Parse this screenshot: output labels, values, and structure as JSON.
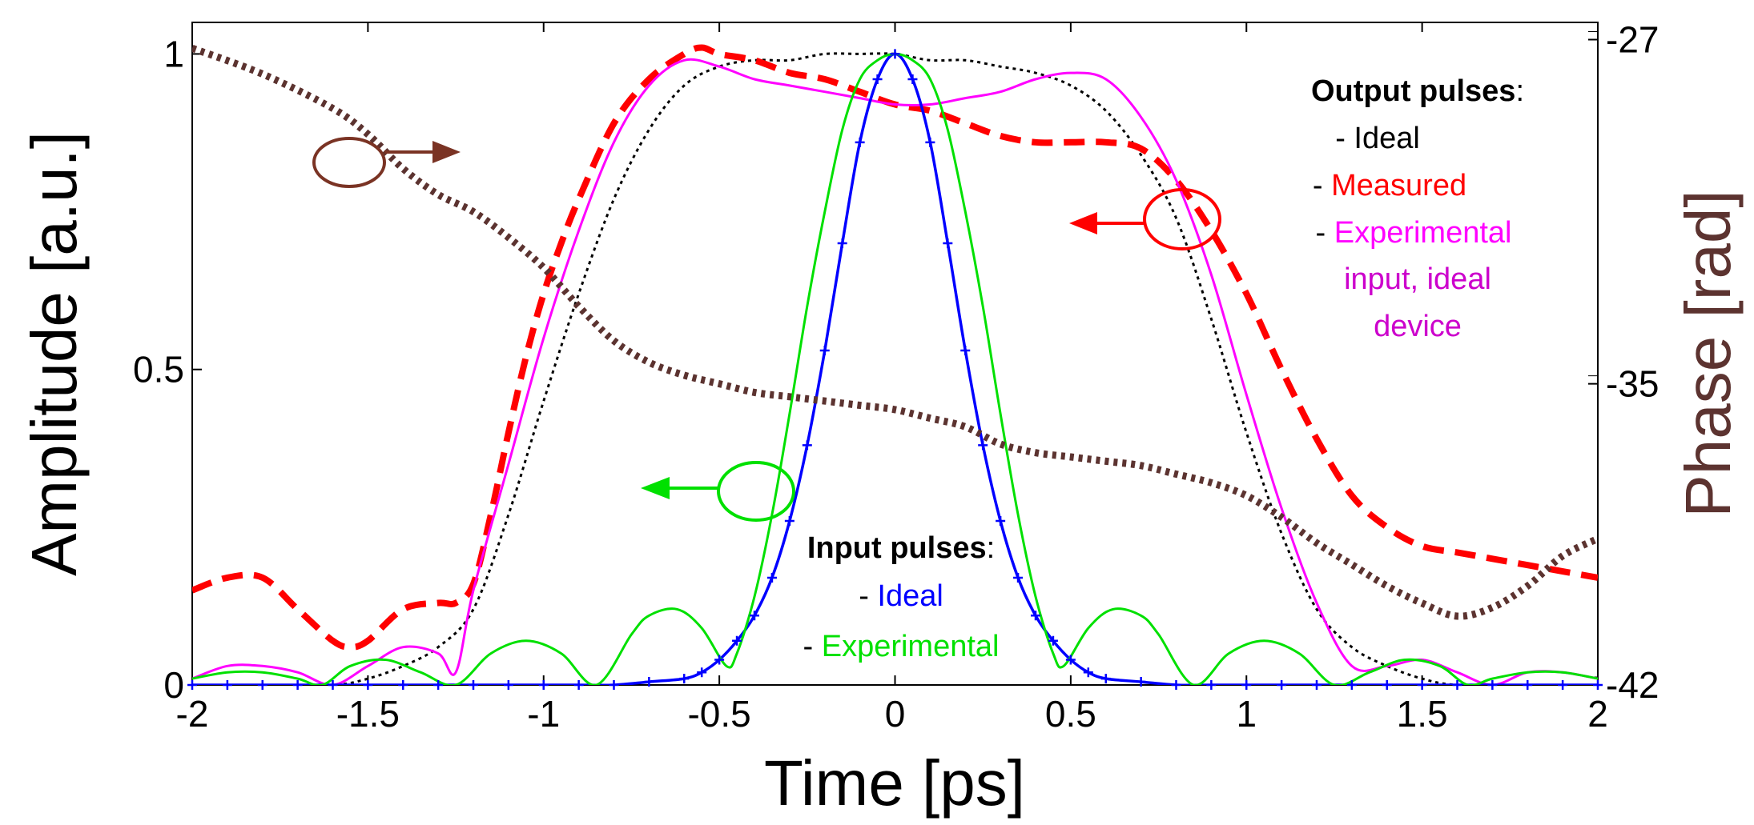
{
  "chart_data": {
    "type": "line",
    "xlabel": "Time [ps]",
    "ylabel": "Amplitude [a.u.]",
    "y2label": "Phase [rad]",
    "xlim": [
      -2,
      2
    ],
    "ylim": [
      0,
      1.05
    ],
    "y2lim": [
      -42,
      -26.6
    ],
    "x_ticks": [
      "-2",
      "-1.5",
      "-1",
      "-0.5",
      "0",
      "0.5",
      "1",
      "1.5",
      "2"
    ],
    "y_ticks": [
      "0",
      "0.5",
      "1"
    ],
    "y2_ticks": [
      "-27",
      "-35",
      "-42"
    ],
    "colors": {
      "output_ideal": "#000000",
      "output_measured": "#ff0000",
      "output_experimental": "#ff00ff",
      "input_ideal": "#0000ff",
      "input_experimental": "#00e000",
      "phase": "#5c3330"
    },
    "legend_output": {
      "heading": "Output pulses",
      "colon": ":",
      "dash": "- ",
      "ideal": "Ideal",
      "measured": "Measured",
      "experimental_1": "Experimental",
      "experimental_2": "input, ideal",
      "experimental_3": "device"
    },
    "legend_input": {
      "heading": "Input pulses",
      "colon": ":",
      "dash": "- ",
      "ideal": "Ideal",
      "experimental": "Experimental"
    },
    "series": [
      {
        "name": "Output ideal",
        "axis": "left",
        "style": "dotted-thin",
        "color_key": "output_ideal",
        "x": [
          -2,
          -1.8,
          -1.6,
          -1.5,
          -1.4,
          -1.3,
          -1.2,
          -1.1,
          -1,
          -0.9,
          -0.8,
          -0.7,
          -0.6,
          -0.5,
          -0.4,
          -0.3,
          -0.2,
          -0.1,
          0,
          0.1,
          0.2,
          0.3,
          0.4,
          0.5,
          0.6,
          0.7,
          0.8,
          0.9,
          1,
          1.1,
          1.2,
          1.3,
          1.4,
          1.5,
          1.6,
          1.8,
          2
        ],
        "y": [
          0,
          0,
          0,
          0.01,
          0.03,
          0.06,
          0.12,
          0.27,
          0.45,
          0.62,
          0.77,
          0.88,
          0.95,
          0.98,
          0.99,
          0.99,
          1,
          1,
          1,
          0.99,
          0.99,
          0.98,
          0.97,
          0.95,
          0.91,
          0.84,
          0.74,
          0.58,
          0.4,
          0.24,
          0.12,
          0.06,
          0.03,
          0.01,
          0,
          0,
          0
        ]
      },
      {
        "name": "Output measured",
        "axis": "left",
        "style": "dashed-thick",
        "color_key": "output_measured",
        "x": [
          -2,
          -1.9,
          -1.8,
          -1.7,
          -1.6,
          -1.55,
          -1.5,
          -1.4,
          -1.3,
          -1.25,
          -1.2,
          -1.15,
          -1.1,
          -1.05,
          -1,
          -0.95,
          -0.9,
          -0.8,
          -0.7,
          -0.6,
          -0.55,
          -0.5,
          -0.4,
          -0.3,
          -0.2,
          -0.1,
          0,
          0.1,
          0.2,
          0.3,
          0.4,
          0.5,
          0.6,
          0.7,
          0.8,
          0.9,
          1,
          1.1,
          1.2,
          1.3,
          1.4,
          1.5,
          1.6,
          1.7,
          1.8,
          1.9,
          2
        ],
        "y": [
          0.15,
          0.17,
          0.17,
          0.12,
          0.07,
          0.06,
          0.07,
          0.12,
          0.13,
          0.13,
          0.16,
          0.27,
          0.4,
          0.52,
          0.62,
          0.7,
          0.77,
          0.89,
          0.96,
          1,
          1.01,
          1,
          0.99,
          0.97,
          0.96,
          0.94,
          0.92,
          0.91,
          0.89,
          0.87,
          0.86,
          0.86,
          0.86,
          0.85,
          0.8,
          0.72,
          0.62,
          0.5,
          0.39,
          0.3,
          0.25,
          0.22,
          0.21,
          0.2,
          0.19,
          0.18,
          0.17
        ]
      },
      {
        "name": "Output experimental",
        "axis": "left",
        "style": "solid-thin",
        "color_key": "output_experimental",
        "x": [
          -2,
          -1.9,
          -1.8,
          -1.7,
          -1.6,
          -1.5,
          -1.4,
          -1.3,
          -1.25,
          -1.2,
          -1.1,
          -1,
          -0.9,
          -0.8,
          -0.7,
          -0.6,
          -0.5,
          -0.4,
          -0.3,
          -0.2,
          -0.1,
          0,
          0.1,
          0.2,
          0.3,
          0.4,
          0.5,
          0.6,
          0.7,
          0.8,
          0.9,
          1,
          1.1,
          1.2,
          1.3,
          1.4,
          1.5,
          1.6,
          1.7,
          1.8,
          1.9,
          2
        ],
        "y": [
          0.01,
          0.03,
          0.03,
          0.02,
          0.0,
          0.03,
          0.06,
          0.05,
          0.02,
          0.15,
          0.35,
          0.55,
          0.72,
          0.86,
          0.95,
          0.99,
          0.98,
          0.96,
          0.95,
          0.94,
          0.93,
          0.92,
          0.92,
          0.93,
          0.94,
          0.96,
          0.97,
          0.96,
          0.9,
          0.8,
          0.65,
          0.46,
          0.28,
          0.13,
          0.03,
          0.03,
          0.04,
          0.02,
          0.0,
          0.02,
          0.02,
          0.01
        ]
      },
      {
        "name": "Input ideal",
        "axis": "left",
        "style": "solid-markers",
        "color_key": "input_ideal",
        "x": [
          -2,
          -1.9,
          -1.8,
          -1.7,
          -1.6,
          -1.5,
          -1.4,
          -1.3,
          -1.2,
          -1.1,
          -1,
          -0.9,
          -0.8,
          -0.7,
          -0.6,
          -0.55,
          -0.5,
          -0.45,
          -0.4,
          -0.35,
          -0.3,
          -0.25,
          -0.2,
          -0.15,
          -0.1,
          -0.05,
          0,
          0.05,
          0.1,
          0.15,
          0.2,
          0.25,
          0.3,
          0.35,
          0.4,
          0.45,
          0.5,
          0.55,
          0.6,
          0.7,
          0.8,
          0.9,
          1,
          1.1,
          1.2,
          1.3,
          1.4,
          1.5,
          1.6,
          1.7,
          1.8,
          1.9,
          2
        ],
        "y": [
          0,
          0,
          0,
          0,
          0,
          0,
          0,
          0,
          0,
          0,
          0,
          0,
          0,
          0.005,
          0.01,
          0.02,
          0.04,
          0.07,
          0.11,
          0.17,
          0.26,
          0.38,
          0.53,
          0.7,
          0.86,
          0.96,
          1,
          0.96,
          0.86,
          0.7,
          0.53,
          0.38,
          0.26,
          0.17,
          0.11,
          0.07,
          0.04,
          0.02,
          0.01,
          0.005,
          0,
          0,
          0,
          0,
          0,
          0,
          0,
          0,
          0,
          0,
          0,
          0,
          0
        ]
      },
      {
        "name": "Input experimental",
        "axis": "left",
        "style": "solid-thin",
        "color_key": "input_experimental",
        "x": [
          -2,
          -1.9,
          -1.8,
          -1.7,
          -1.63,
          -1.55,
          -1.45,
          -1.35,
          -1.25,
          -1.15,
          -1.05,
          -0.95,
          -0.85,
          -0.75,
          -0.7,
          -0.62,
          -0.55,
          -0.48,
          -0.45,
          -0.4,
          -0.35,
          -0.3,
          -0.25,
          -0.2,
          -0.15,
          -0.1,
          -0.05,
          0,
          0.05,
          0.1,
          0.15,
          0.2,
          0.25,
          0.3,
          0.35,
          0.4,
          0.45,
          0.48,
          0.55,
          0.62,
          0.7,
          0.75,
          0.85,
          0.95,
          1.05,
          1.15,
          1.25,
          1.35,
          1.45,
          1.55,
          1.63,
          1.7,
          1.8,
          1.9,
          2
        ],
        "y": [
          0.01,
          0.02,
          0.02,
          0.01,
          0.0,
          0.03,
          0.04,
          0.02,
          0.0,
          0.05,
          0.07,
          0.05,
          0.0,
          0.08,
          0.11,
          0.12,
          0.09,
          0.03,
          0.05,
          0.14,
          0.27,
          0.43,
          0.6,
          0.75,
          0.88,
          0.96,
          0.99,
          1,
          0.99,
          0.96,
          0.88,
          0.75,
          0.6,
          0.43,
          0.27,
          0.14,
          0.05,
          0.03,
          0.09,
          0.12,
          0.11,
          0.08,
          0.0,
          0.05,
          0.07,
          0.05,
          0.0,
          0.02,
          0.04,
          0.03,
          0.0,
          0.01,
          0.02,
          0.02,
          0.01
        ]
      },
      {
        "name": "Phase",
        "axis": "right",
        "style": "dotted-thick",
        "color_key": "phase",
        "x": [
          -2,
          -1.8,
          -1.6,
          -1.5,
          -1.4,
          -1.3,
          -1.2,
          -1.1,
          -1,
          -0.9,
          -0.8,
          -0.7,
          -0.6,
          -0.5,
          -0.4,
          -0.3,
          -0.2,
          -0.1,
          0,
          0.1,
          0.2,
          0.3,
          0.4,
          0.5,
          0.6,
          0.7,
          0.8,
          0.9,
          1,
          1.1,
          1.2,
          1.3,
          1.4,
          1.5,
          1.6,
          1.7,
          1.8,
          1.9,
          2
        ],
        "y": [
          -27.2,
          -27.8,
          -28.6,
          -29.2,
          -30,
          -30.6,
          -31,
          -31.6,
          -32.3,
          -33.2,
          -34,
          -34.5,
          -34.8,
          -35,
          -35.2,
          -35.3,
          -35.4,
          -35.5,
          -35.6,
          -35.8,
          -36,
          -36.4,
          -36.6,
          -36.7,
          -36.8,
          -36.9,
          -37.1,
          -37.3,
          -37.6,
          -38.1,
          -38.7,
          -39.2,
          -39.7,
          -40.1,
          -40.4,
          -40.2,
          -39.7,
          -39,
          -38.6
        ]
      }
    ]
  }
}
